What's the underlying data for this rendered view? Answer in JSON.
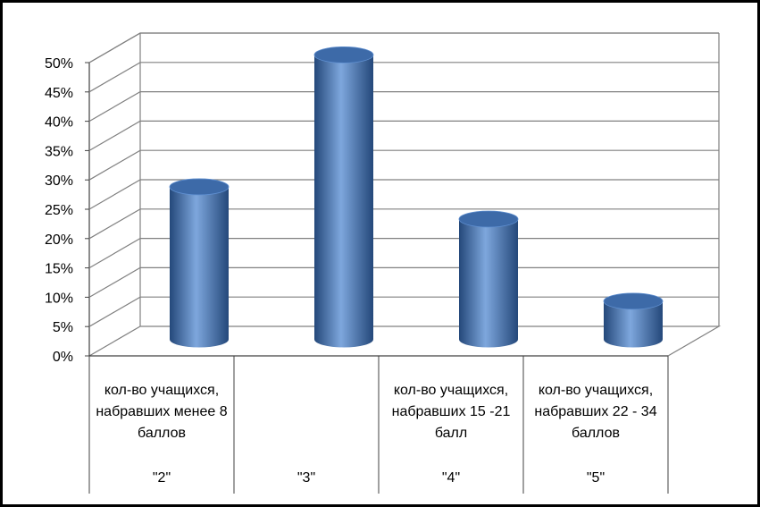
{
  "chart_data": {
    "type": "bar",
    "style": "3d-cylinder",
    "categories": [
      {
        "label": "кол-во учащихся,\nнабравших менее 8\nбаллов",
        "code": "\"2\""
      },
      {
        "label": "",
        "code": "\"3\""
      },
      {
        "label": "кол-во учащихся,\nнабравших 15 -21\nбалл",
        "code": "\"4\""
      },
      {
        "label": "кол-во учащихся,\nнабравших 22 - 34\nбаллов",
        "code": "\"5\""
      }
    ],
    "values": [
      26,
      48.5,
      20.5,
      6.5
    ],
    "ylim": [
      0,
      50
    ],
    "y_ticks": [
      "0%",
      "5%",
      "10%",
      "15%",
      "20%",
      "25%",
      "30%",
      "35%",
      "40%",
      "45%",
      "50%"
    ],
    "grid": true,
    "legend": "none",
    "colors": {
      "bar": "#4a7ebb",
      "bar_dark": "#24487a",
      "bar_light": "#7ea7dd",
      "grid": "#808080",
      "background": "#ffffff",
      "frame": "#000000"
    }
  }
}
